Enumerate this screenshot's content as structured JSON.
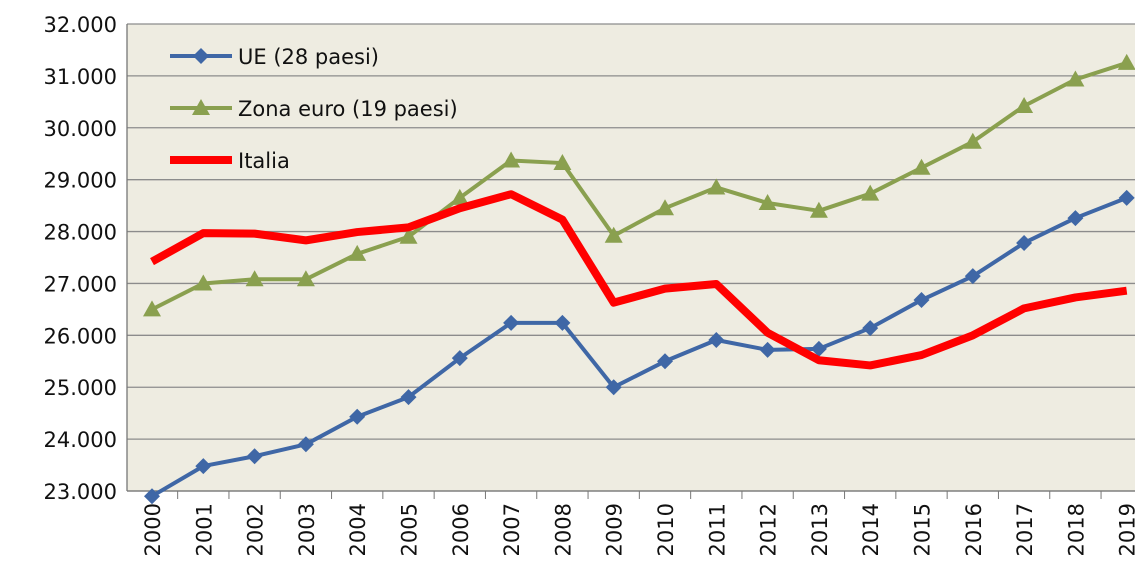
{
  "chart_data": {
    "type": "line",
    "categories": [
      "2000",
      "2001",
      "2002",
      "2003",
      "2004",
      "2005",
      "2006",
      "2007",
      "2008",
      "2009",
      "2010",
      "2011",
      "2012",
      "2013",
      "2014",
      "2015",
      "2016",
      "2017",
      "2018",
      "2019"
    ],
    "series": [
      {
        "name": "UE (28 paesi)",
        "color": "#3f67a6",
        "marker": "diamond",
        "values": [
          22900,
          23480,
          23670,
          23900,
          24430,
          24810,
          25560,
          26240,
          26240,
          25000,
          25500,
          25910,
          25720,
          25740,
          26140,
          26680,
          27140,
          27780,
          28260,
          28650
        ]
      },
      {
        "name": "Zona euro (19 paesi)",
        "color": "#8aa04f",
        "marker": "triangle",
        "values": [
          26500,
          27000,
          27080,
          27080,
          27570,
          27900,
          28650,
          29370,
          29320,
          27920,
          28450,
          28850,
          28550,
          28400,
          28730,
          29230,
          29730,
          30420,
          30930,
          31250
        ]
      },
      {
        "name": "Italia",
        "color": "#ff0000",
        "marker": "none",
        "values": [
          27420,
          27970,
          27960,
          27830,
          27990,
          28080,
          28450,
          28720,
          28230,
          26630,
          26900,
          26990,
          26050,
          25520,
          25420,
          25620,
          26000,
          26520,
          26730,
          26860
        ]
      }
    ],
    "ylim": [
      23000,
      32000
    ],
    "yticks": [
      {
        "value": 23000,
        "label": "23.000"
      },
      {
        "value": 24000,
        "label": "24.000"
      },
      {
        "value": 25000,
        "label": "25.000"
      },
      {
        "value": 26000,
        "label": "26.000"
      },
      {
        "value": 27000,
        "label": "27.000"
      },
      {
        "value": 28000,
        "label": "28.000"
      },
      {
        "value": 29000,
        "label": "29.000"
      },
      {
        "value": 30000,
        "label": "30.000"
      },
      {
        "value": 31000,
        "label": "31.000"
      },
      {
        "value": 32000,
        "label": "32.000"
      }
    ],
    "grid": true,
    "legend": "top-left"
  }
}
